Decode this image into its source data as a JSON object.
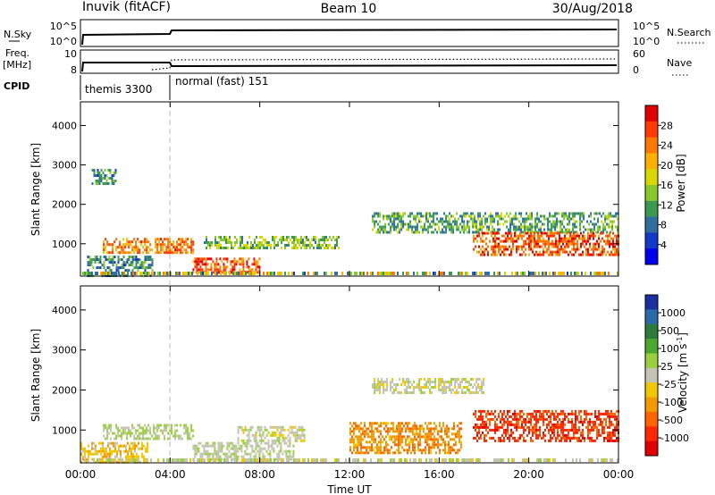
{
  "header": {
    "station": "Inuvik (fitACF)",
    "beam": "Beam 10",
    "date": "30/Aug/2018"
  },
  "nsky_panel": {
    "left_label": "N.Sky",
    "right_label": "N.Search",
    "left_ticks": [
      "10^5",
      "10^0"
    ],
    "right_ticks": [
      "10^5",
      "10^0"
    ]
  },
  "freq_panel": {
    "left_label_1": "Freq.",
    "left_label_2": "[MHz]",
    "right_label": "Nave",
    "left_ticks": [
      "10",
      "8"
    ],
    "right_ticks": [
      "60",
      "0"
    ]
  },
  "cpid": {
    "label": "CPID",
    "segments": [
      {
        "text": "themis 3300",
        "start_hour": 0,
        "end_hour": 4
      },
      {
        "text": "normal (fast) 151",
        "start_hour": 4,
        "end_hour": 24
      }
    ]
  },
  "power_panel": {
    "ylabel": "Slant Range [km]",
    "cbar_label": "Power [dB]",
    "cbar_ticks": [
      "28",
      "24",
      "20",
      "16",
      "12",
      "8",
      "4"
    ],
    "cbar_colors": [
      "#e00000",
      "#ff3a00",
      "#ff7800",
      "#ffb000",
      "#d8d800",
      "#8ac830",
      "#3c9a50",
      "#2f6e9e",
      "#1438c8",
      "#0000ee"
    ]
  },
  "velocity_panel": {
    "ylabel": "Slant Range [km]",
    "cbar_label": "Velocity [m s",
    "cbar_label_sup": "-1",
    "cbar_label_end": "]",
    "cbar_ticks": [
      "1000",
      "500",
      "100",
      "25",
      "-25",
      "-100",
      "-500",
      "-1000"
    ],
    "cbar_colors": [
      "#1a2fa0",
      "#2a6aa8",
      "#2d7a3a",
      "#4aa830",
      "#9ad040",
      "#c4c4b4",
      "#f0c800",
      "#f29a00",
      "#ff6400",
      "#ff2800",
      "#e00000"
    ]
  },
  "x_axis": {
    "label": "Time UT",
    "tick_labels": [
      "00:00",
      "04:00",
      "08:00",
      "12:00",
      "16:00",
      "20:00",
      "00:00"
    ]
  },
  "chart_data": {
    "type": "heatmap",
    "title": "Inuvik (fitACF)  Beam 10  30/Aug/2018",
    "xlabel": "Time UT",
    "ylabel": "Slant Range [km]",
    "x_range_hours": [
      0,
      24
    ],
    "ylim_km": [
      180,
      4600
    ],
    "y_ticks": [
      1000,
      2000,
      3000,
      4000
    ],
    "power": {
      "units": "dB",
      "cbar_range": [
        0,
        32
      ],
      "regions": [
        {
          "t0": 0.3,
          "t1": 3.2,
          "r0": 200,
          "r1": 700,
          "value": 10
        },
        {
          "t0": 1.0,
          "t1": 5.0,
          "r0": 780,
          "r1": 1150,
          "value": 24
        },
        {
          "t0": 5.0,
          "t1": 8.0,
          "r0": 300,
          "r1": 650,
          "value": 26
        },
        {
          "t0": 5.5,
          "t1": 11.5,
          "r0": 900,
          "r1": 1200,
          "value": 14
        },
        {
          "t0": 13.0,
          "t1": 24.0,
          "r0": 1300,
          "r1": 1800,
          "value": 12
        },
        {
          "t0": 17.5,
          "t1": 24.0,
          "r0": 700,
          "r1": 1300,
          "value": 26
        },
        {
          "t0": 0.5,
          "t1": 1.6,
          "r0": 2500,
          "r1": 2900,
          "value": 10
        }
      ]
    },
    "velocity": {
      "units": "m s-1",
      "cbar_range": [
        -1000,
        1000
      ],
      "regions": [
        {
          "t0": 0.0,
          "t1": 3.0,
          "r0": 200,
          "r1": 700,
          "value": -200
        },
        {
          "t0": 1.0,
          "t1": 5.0,
          "r0": 780,
          "r1": 1150,
          "value": 80
        },
        {
          "t0": 5.0,
          "t1": 9.5,
          "r0": 250,
          "r1": 700,
          "value": 60
        },
        {
          "t0": 7.0,
          "t1": 10.0,
          "r0": 700,
          "r1": 1100,
          "value": 0
        },
        {
          "t0": 13.0,
          "t1": 18.0,
          "r0": 1900,
          "r1": 2300,
          "value": 0
        },
        {
          "t0": 17.5,
          "t1": 24.0,
          "r0": 700,
          "r1": 1500,
          "value": -700
        },
        {
          "t0": 12.0,
          "t1": 17.0,
          "r0": 400,
          "r1": 1200,
          "value": -400
        }
      ]
    },
    "n_sky": "nearly constant near 10^5, lower during 00:00-04:00",
    "nave": "near 0 during 00:00-04:00, higher afterwards"
  }
}
